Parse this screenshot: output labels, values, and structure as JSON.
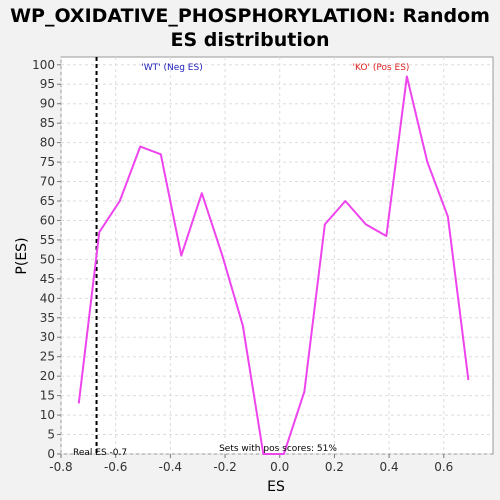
{
  "chart_data": {
    "type": "line",
    "title_lines": [
      "WP_OXIDATIVE_PHOSPHORYLATION: Random",
      "ES distribution"
    ],
    "xlabel": "ES",
    "ylabel": "P(ES)",
    "xlim": [
      -0.8,
      0.78
    ],
    "ylim": [
      0,
      102
    ],
    "x_ticks": [
      -0.8,
      -0.6,
      -0.4,
      -0.2,
      0.0,
      0.2,
      0.4,
      0.6
    ],
    "x_tick_labels": [
      "-0.8",
      "-0.6",
      "-0.4",
      "-0.2",
      "0.0",
      "0.2",
      "0.4",
      "0.6"
    ],
    "y_ticks": [
      0,
      5,
      10,
      15,
      20,
      25,
      30,
      35,
      40,
      45,
      50,
      55,
      60,
      65,
      70,
      75,
      80,
      85,
      90,
      95,
      100
    ],
    "y_tick_labels": [
      "0",
      "5",
      "10",
      "15",
      "20",
      "25",
      "30",
      "35",
      "40",
      "45",
      "50",
      "55",
      "60",
      "65",
      "70",
      "75",
      "80",
      "85",
      "90",
      "95",
      "100"
    ],
    "grid": true,
    "line_color": "#ee44ee",
    "series": [
      {
        "x": [
          -0.735,
          -0.66,
          -0.585,
          -0.51,
          -0.435,
          -0.36,
          -0.285,
          -0.21,
          -0.135,
          -0.06,
          0.015,
          0.09,
          0.165,
          0.24,
          0.315,
          0.39,
          0.465,
          0.54,
          0.615,
          0.69
        ],
        "y": [
          13,
          57,
          65,
          79,
          77,
          51,
          67,
          51,
          33,
          0,
          0,
          16,
          59,
          65,
          59,
          56,
          97,
          75,
          61,
          19
        ]
      }
    ],
    "real_es_marker": {
      "x": -0.67,
      "label": "Real ES -0.7"
    },
    "annotations": {
      "neg_label": "'WT' (Neg ES)",
      "pos_label": "'KO' (Pos ES)",
      "neg_color": "#2222bb",
      "pos_color": "#dd2222",
      "pos_scores_note": "Sets with pos scores: 51%"
    }
  }
}
